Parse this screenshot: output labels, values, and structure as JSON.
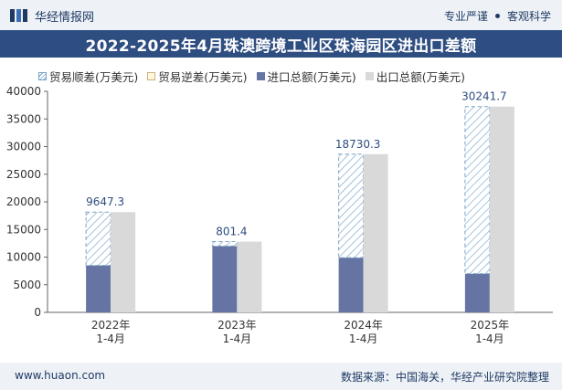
{
  "header": {
    "brand": "华经情报网",
    "tag1": "专业严谨",
    "tag2": "客观科学"
  },
  "footer": {
    "site": "www.huaon.com",
    "source": "数据来源：中国海关，华经产业研究院整理"
  },
  "colors": {
    "import": "#6574a3",
    "export": "#d9d9d9",
    "surplus": "#7aa3c7",
    "header_bg": "#2e4d80"
  },
  "chart_data": {
    "type": "bar",
    "title": "2022-2025年4月珠澳跨境工业区珠海园区进出口差额",
    "categories": [
      "2022年\n1-4月",
      "2023年\n1-4月",
      "2024年\n1-4月",
      "2025年\n1-4月"
    ],
    "legend": [
      "贸易顺差(万美元)",
      "贸易逆差(万美元)",
      "进口总额(万美元)",
      "出口总额(万美元)"
    ],
    "series": [
      {
        "name": "进口总额(万美元)",
        "values": [
          8500,
          12000,
          9900,
          7000
        ]
      },
      {
        "name": "出口总额(万美元)",
        "values": [
          18147.3,
          12801.4,
          28630.3,
          37241.7
        ]
      },
      {
        "name": "贸易顺差(万美元)",
        "values": [
          9647.3,
          801.4,
          18730.3,
          30241.7
        ]
      }
    ],
    "balance_labels": [
      "9647.3",
      "801.4",
      "18730.3",
      "30241.7"
    ],
    "yticks": [
      "0",
      "5000",
      "10000",
      "15000",
      "20000",
      "25000",
      "30000",
      "35000",
      "40000"
    ],
    "ylim": [
      0,
      40000
    ],
    "xlabel": "",
    "ylabel": ""
  }
}
